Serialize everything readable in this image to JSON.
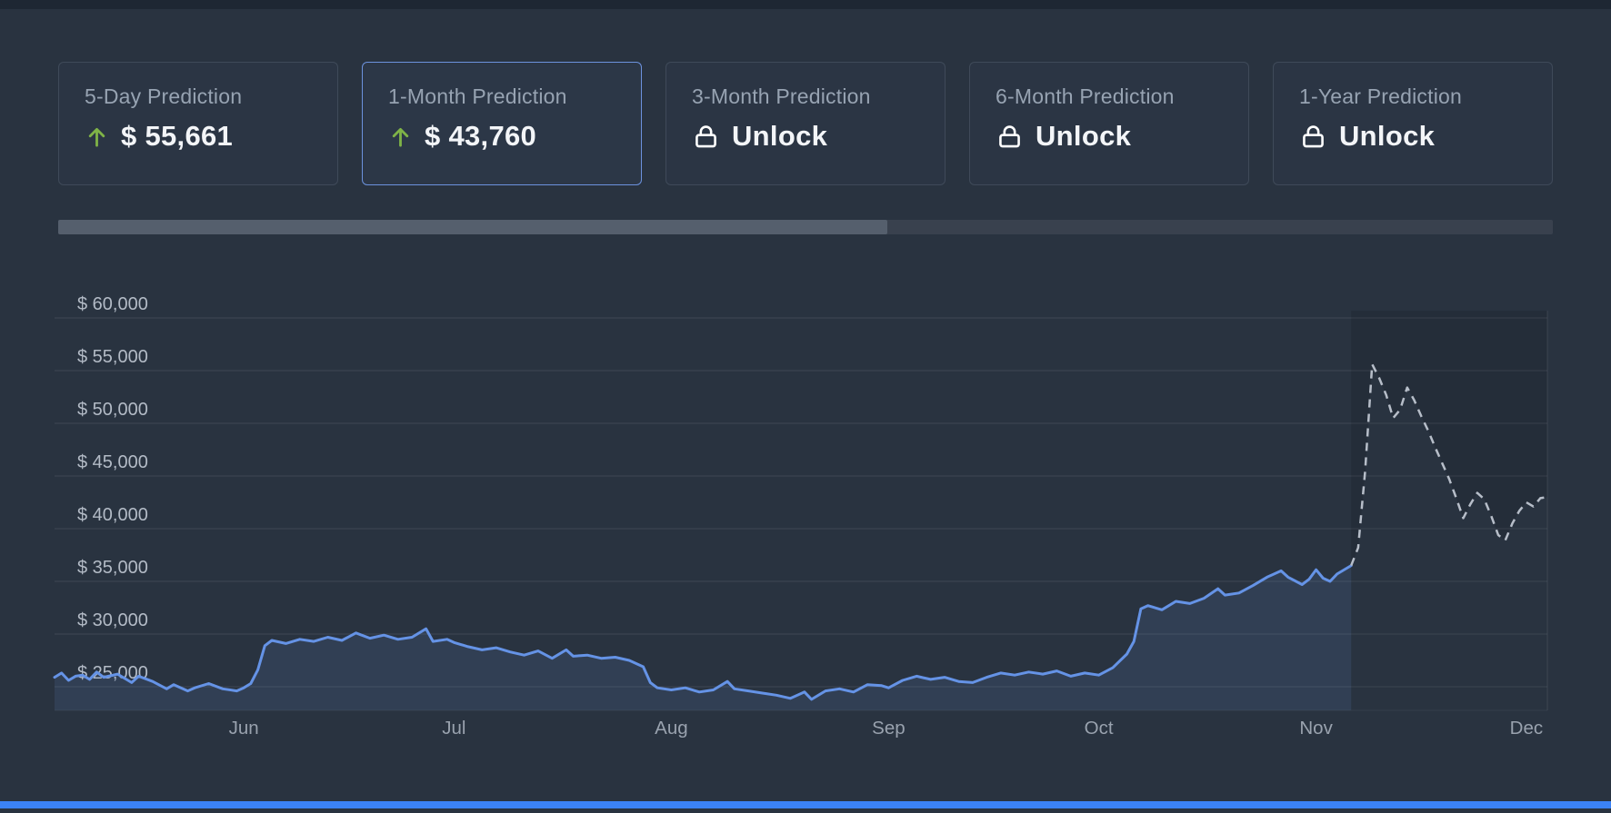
{
  "colors": {
    "background": "#293340",
    "card_border": "#3f4a59",
    "selected_card_border": "#6c92dd",
    "up_green": "#7fb347",
    "line_blue": "#6593e6",
    "forecast_gray": "#b7bec9",
    "bottom_bar_blue": "#3b82f6"
  },
  "cards": [
    {
      "label": "5-Day Prediction",
      "value": "$ 55,661",
      "icon": "up-arrow",
      "state": "up",
      "selected": false
    },
    {
      "label": "1-Month Prediction",
      "value": "$ 43,760",
      "icon": "up-arrow",
      "state": "up",
      "selected": true
    },
    {
      "label": "3-Month Prediction",
      "value": "Unlock",
      "icon": "lock",
      "state": "locked",
      "selected": false
    },
    {
      "label": "6-Month Prediction",
      "value": "Unlock",
      "icon": "lock",
      "state": "locked",
      "selected": false
    },
    {
      "label": "1-Year Prediction",
      "value": "Unlock",
      "icon": "lock",
      "state": "locked",
      "selected": false
    }
  ],
  "scrollbar": {
    "thumb_percent": 55.5
  },
  "chart_data": {
    "type": "line",
    "title": "",
    "xlabel": "",
    "ylabel": "",
    "ylim": [
      22500,
      62500
    ],
    "grid": true,
    "legend": "none",
    "y_ticks": [
      {
        "value": 60000,
        "label": "$ 60,000"
      },
      {
        "value": 55000,
        "label": "$ 55,000"
      },
      {
        "value": 50000,
        "label": "$ 50,000"
      },
      {
        "value": 45000,
        "label": "$ 45,000"
      },
      {
        "value": 40000,
        "label": "$ 40,000"
      },
      {
        "value": 35000,
        "label": "$ 35,000"
      },
      {
        "value": 30000,
        "label": "$ 30,000"
      },
      {
        "value": 25000,
        "label": "$ 25,000"
      }
    ],
    "x_ticks": [
      {
        "pos": 27,
        "label": "Jun"
      },
      {
        "pos": 57,
        "label": "Jul"
      },
      {
        "pos": 88,
        "label": "Aug"
      },
      {
        "pos": 119,
        "label": "Sep"
      },
      {
        "pos": 149,
        "label": "Oct"
      },
      {
        "pos": 180,
        "label": "Nov"
      },
      {
        "pos": 210,
        "label": "Dec"
      }
    ],
    "x_domain": [
      0,
      213
    ],
    "series": [
      {
        "name": "historical-price",
        "style": "solid",
        "color": "#6593e6",
        "area": true,
        "points": [
          [
            0,
            25900
          ],
          [
            1,
            26300
          ],
          [
            2,
            25600
          ],
          [
            3,
            26000
          ],
          [
            4,
            26100
          ],
          [
            5,
            25700
          ],
          [
            6,
            26400
          ],
          [
            7,
            25900
          ],
          [
            9,
            26200
          ],
          [
            11,
            25400
          ],
          [
            12,
            26000
          ],
          [
            14,
            25500
          ],
          [
            16,
            24800
          ],
          [
            17,
            25200
          ],
          [
            19,
            24600
          ],
          [
            20,
            24900
          ],
          [
            22,
            25300
          ],
          [
            24,
            24800
          ],
          [
            26,
            24600
          ],
          [
            27,
            24900
          ],
          [
            28,
            25300
          ],
          [
            29,
            26600
          ],
          [
            30,
            28900
          ],
          [
            31,
            29400
          ],
          [
            33,
            29100
          ],
          [
            35,
            29500
          ],
          [
            37,
            29300
          ],
          [
            39,
            29700
          ],
          [
            41,
            29400
          ],
          [
            43,
            30100
          ],
          [
            45,
            29600
          ],
          [
            47,
            29900
          ],
          [
            49,
            29500
          ],
          [
            51,
            29700
          ],
          [
            53,
            30500
          ],
          [
            54,
            29300
          ],
          [
            56,
            29500
          ],
          [
            57,
            29200
          ],
          [
            59,
            28800
          ],
          [
            61,
            28500
          ],
          [
            63,
            28700
          ],
          [
            65,
            28300
          ],
          [
            67,
            28000
          ],
          [
            69,
            28400
          ],
          [
            71,
            27700
          ],
          [
            73,
            28500
          ],
          [
            74,
            27900
          ],
          [
            76,
            28000
          ],
          [
            78,
            27700
          ],
          [
            80,
            27800
          ],
          [
            82,
            27500
          ],
          [
            84,
            26900
          ],
          [
            85,
            25400
          ],
          [
            86,
            24900
          ],
          [
            88,
            24700
          ],
          [
            90,
            24900
          ],
          [
            92,
            24500
          ],
          [
            94,
            24700
          ],
          [
            96,
            25500
          ],
          [
            97,
            24800
          ],
          [
            99,
            24600
          ],
          [
            101,
            24400
          ],
          [
            103,
            24200
          ],
          [
            105,
            23900
          ],
          [
            107,
            24500
          ],
          [
            108,
            23800
          ],
          [
            110,
            24600
          ],
          [
            112,
            24800
          ],
          [
            114,
            24500
          ],
          [
            116,
            25200
          ],
          [
            118,
            25100
          ],
          [
            119,
            24900
          ],
          [
            121,
            25600
          ],
          [
            123,
            26000
          ],
          [
            125,
            25700
          ],
          [
            127,
            25900
          ],
          [
            129,
            25500
          ],
          [
            131,
            25400
          ],
          [
            133,
            25900
          ],
          [
            135,
            26300
          ],
          [
            137,
            26100
          ],
          [
            139,
            26400
          ],
          [
            141,
            26200
          ],
          [
            143,
            26500
          ],
          [
            145,
            26000
          ],
          [
            147,
            26300
          ],
          [
            149,
            26100
          ],
          [
            151,
            26800
          ],
          [
            153,
            28100
          ],
          [
            154,
            29300
          ],
          [
            155,
            32400
          ],
          [
            156,
            32700
          ],
          [
            158,
            32300
          ],
          [
            160,
            33100
          ],
          [
            162,
            32900
          ],
          [
            164,
            33400
          ],
          [
            166,
            34300
          ],
          [
            167,
            33700
          ],
          [
            169,
            33900
          ],
          [
            171,
            34600
          ],
          [
            173,
            35400
          ],
          [
            175,
            36000
          ],
          [
            176,
            35400
          ],
          [
            178,
            34700
          ],
          [
            179,
            35200
          ],
          [
            180,
            36100
          ],
          [
            181,
            35300
          ],
          [
            182,
            35000
          ],
          [
            183,
            35700
          ],
          [
            185,
            36500
          ]
        ]
      },
      {
        "name": "forecast-price",
        "style": "dashed",
        "color": "#b7bec9",
        "area": false,
        "points": [
          [
            185,
            36500
          ],
          [
            186,
            38200
          ],
          [
            187,
            45500
          ],
          [
            188,
            55600
          ],
          [
            189,
            54300
          ],
          [
            190,
            52700
          ],
          [
            191,
            50500
          ],
          [
            192,
            51300
          ],
          [
            193,
            53400
          ],
          [
            194,
            52200
          ],
          [
            195,
            50700
          ],
          [
            196,
            49300
          ],
          [
            197,
            47700
          ],
          [
            198,
            46200
          ],
          [
            199,
            44700
          ],
          [
            200,
            42900
          ],
          [
            201,
            41000
          ],
          [
            202,
            42300
          ],
          [
            203,
            43400
          ],
          [
            204,
            42800
          ],
          [
            205,
            41200
          ],
          [
            206,
            39400
          ],
          [
            207,
            38900
          ],
          [
            208,
            40500
          ],
          [
            209,
            41700
          ],
          [
            210,
            42500
          ],
          [
            211,
            42100
          ],
          [
            212,
            42900
          ],
          [
            213,
            43000
          ]
        ]
      }
    ]
  }
}
